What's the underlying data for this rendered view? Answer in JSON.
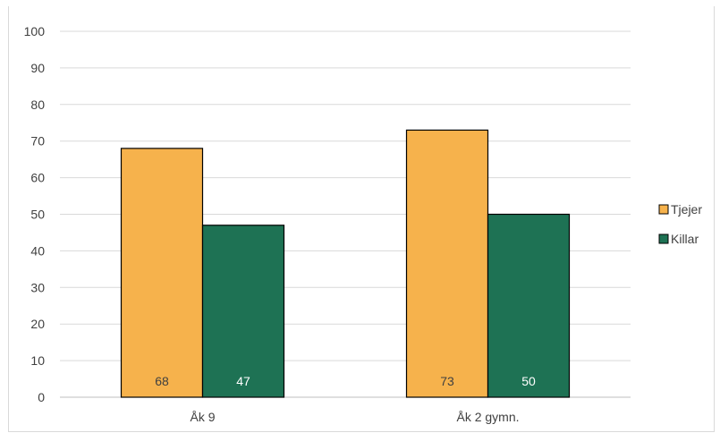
{
  "chart_data": {
    "type": "bar",
    "title": "",
    "xlabel": "",
    "ylabel": "",
    "categories": [
      "Åk 9",
      "Åk 2 gymn."
    ],
    "series": [
      {
        "name": "Tjejer",
        "values": [
          68,
          73
        ],
        "color": "#F6B24C"
      },
      {
        "name": "Killar",
        "values": [
          47,
          50
        ],
        "color": "#1E7254"
      }
    ],
    "ylim": [
      0,
      100
    ],
    "yticks": [
      0,
      10,
      20,
      30,
      40,
      50,
      60,
      70,
      80,
      90,
      100
    ],
    "grid": true,
    "legend_position": "right",
    "data_labels": true
  }
}
